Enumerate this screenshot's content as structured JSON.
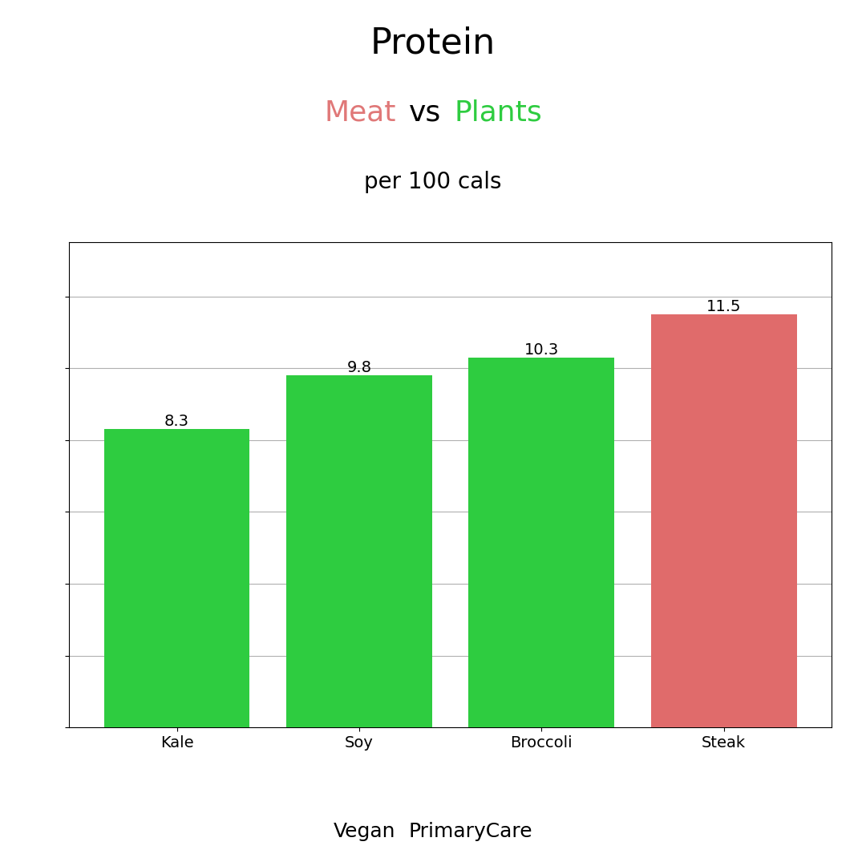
{
  "chart_data": {
    "type": "bar",
    "title": "Protein",
    "subtitle": "per 100 cals",
    "categories": [
      "Kale",
      "Soy",
      "Broccoli",
      "Steak"
    ],
    "values": [
      8.3,
      9.8,
      10.3,
      11.5
    ],
    "colors": [
      "#2ECC40",
      "#2ECC40",
      "#2ECC40",
      "#E06B6B"
    ],
    "ylim": [
      0,
      13.5
    ],
    "yticks": [
      0,
      2,
      4,
      6,
      8,
      10,
      12
    ],
    "grid": true,
    "data_labels": true,
    "tick_labels": "x",
    "annotations": [
      [
        {
          "text": "Meat",
          "color": "#E07878"
        },
        {
          "text": "vs"
        },
        {
          "text": "Plants",
          "color": "#2ECC40"
        }
      ],
      [
        {
          "text": "Vegan"
        },
        {
          "text": "PrimaryCare"
        }
      ]
    ]
  }
}
